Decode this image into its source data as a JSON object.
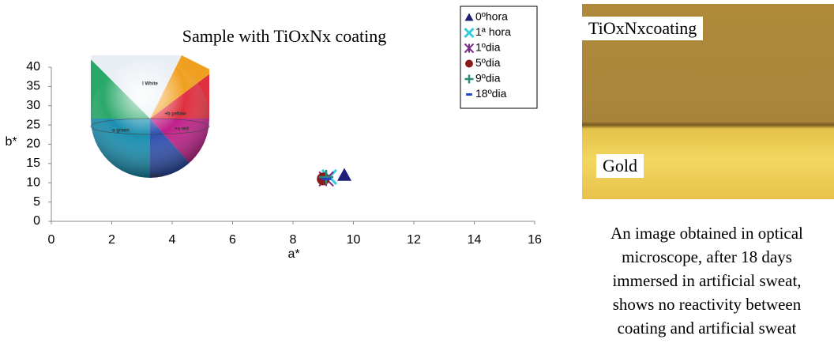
{
  "chart_data": {
    "type": "scatter",
    "title": "Sample with TiOxNx coating",
    "x_label": "a*",
    "y_label": "b*",
    "xlim": [
      0,
      16
    ],
    "xticks": [
      0,
      2,
      4,
      6,
      8,
      10,
      12,
      14,
      16
    ],
    "ylim": [
      0,
      40
    ],
    "yticks": [
      0,
      5,
      10,
      15,
      20,
      25,
      30,
      35,
      40
    ],
    "legend": "upper right",
    "series": [
      {
        "name": "0ºhora",
        "color": "#1f1f7a",
        "marker": "triangle",
        "x": [
          9.7
        ],
        "values": [
          12
        ]
      },
      {
        "name": "1ª hora",
        "color": "#33ccdd",
        "marker": "x",
        "x": [
          9.2
        ],
        "values": [
          11.5
        ]
      },
      {
        "name": "1ºdia",
        "color": "#7a2a8a",
        "marker": "asterisk",
        "x": [
          9.1
        ],
        "values": [
          11
        ]
      },
      {
        "name": "5ºdia",
        "color": "#8b1a1a",
        "marker": "circle",
        "x": [
          9.0
        ],
        "values": [
          11
        ]
      },
      {
        "name": "9ºdia",
        "color": "#2a8a7a",
        "marker": "plus",
        "x": [
          9.1
        ],
        "values": [
          11.5
        ]
      },
      {
        "name": "18ºdia",
        "color": "#2244cc",
        "marker": "dash",
        "x": [
          9.1
        ],
        "values": [
          11
        ]
      }
    ],
    "sphere_labels": [
      "l White",
      "+b yellow",
      "-a green",
      "+a red",
      "black"
    ]
  },
  "photo": {
    "labels": [
      "TiOxNxcoating",
      "Gold"
    ],
    "caption": [
      "An image obtained in optical",
      "microscope, after 18 days",
      "immersed in artificial sweat,",
      "shows no reactivity between",
      "coating and artificial sweat"
    ]
  }
}
